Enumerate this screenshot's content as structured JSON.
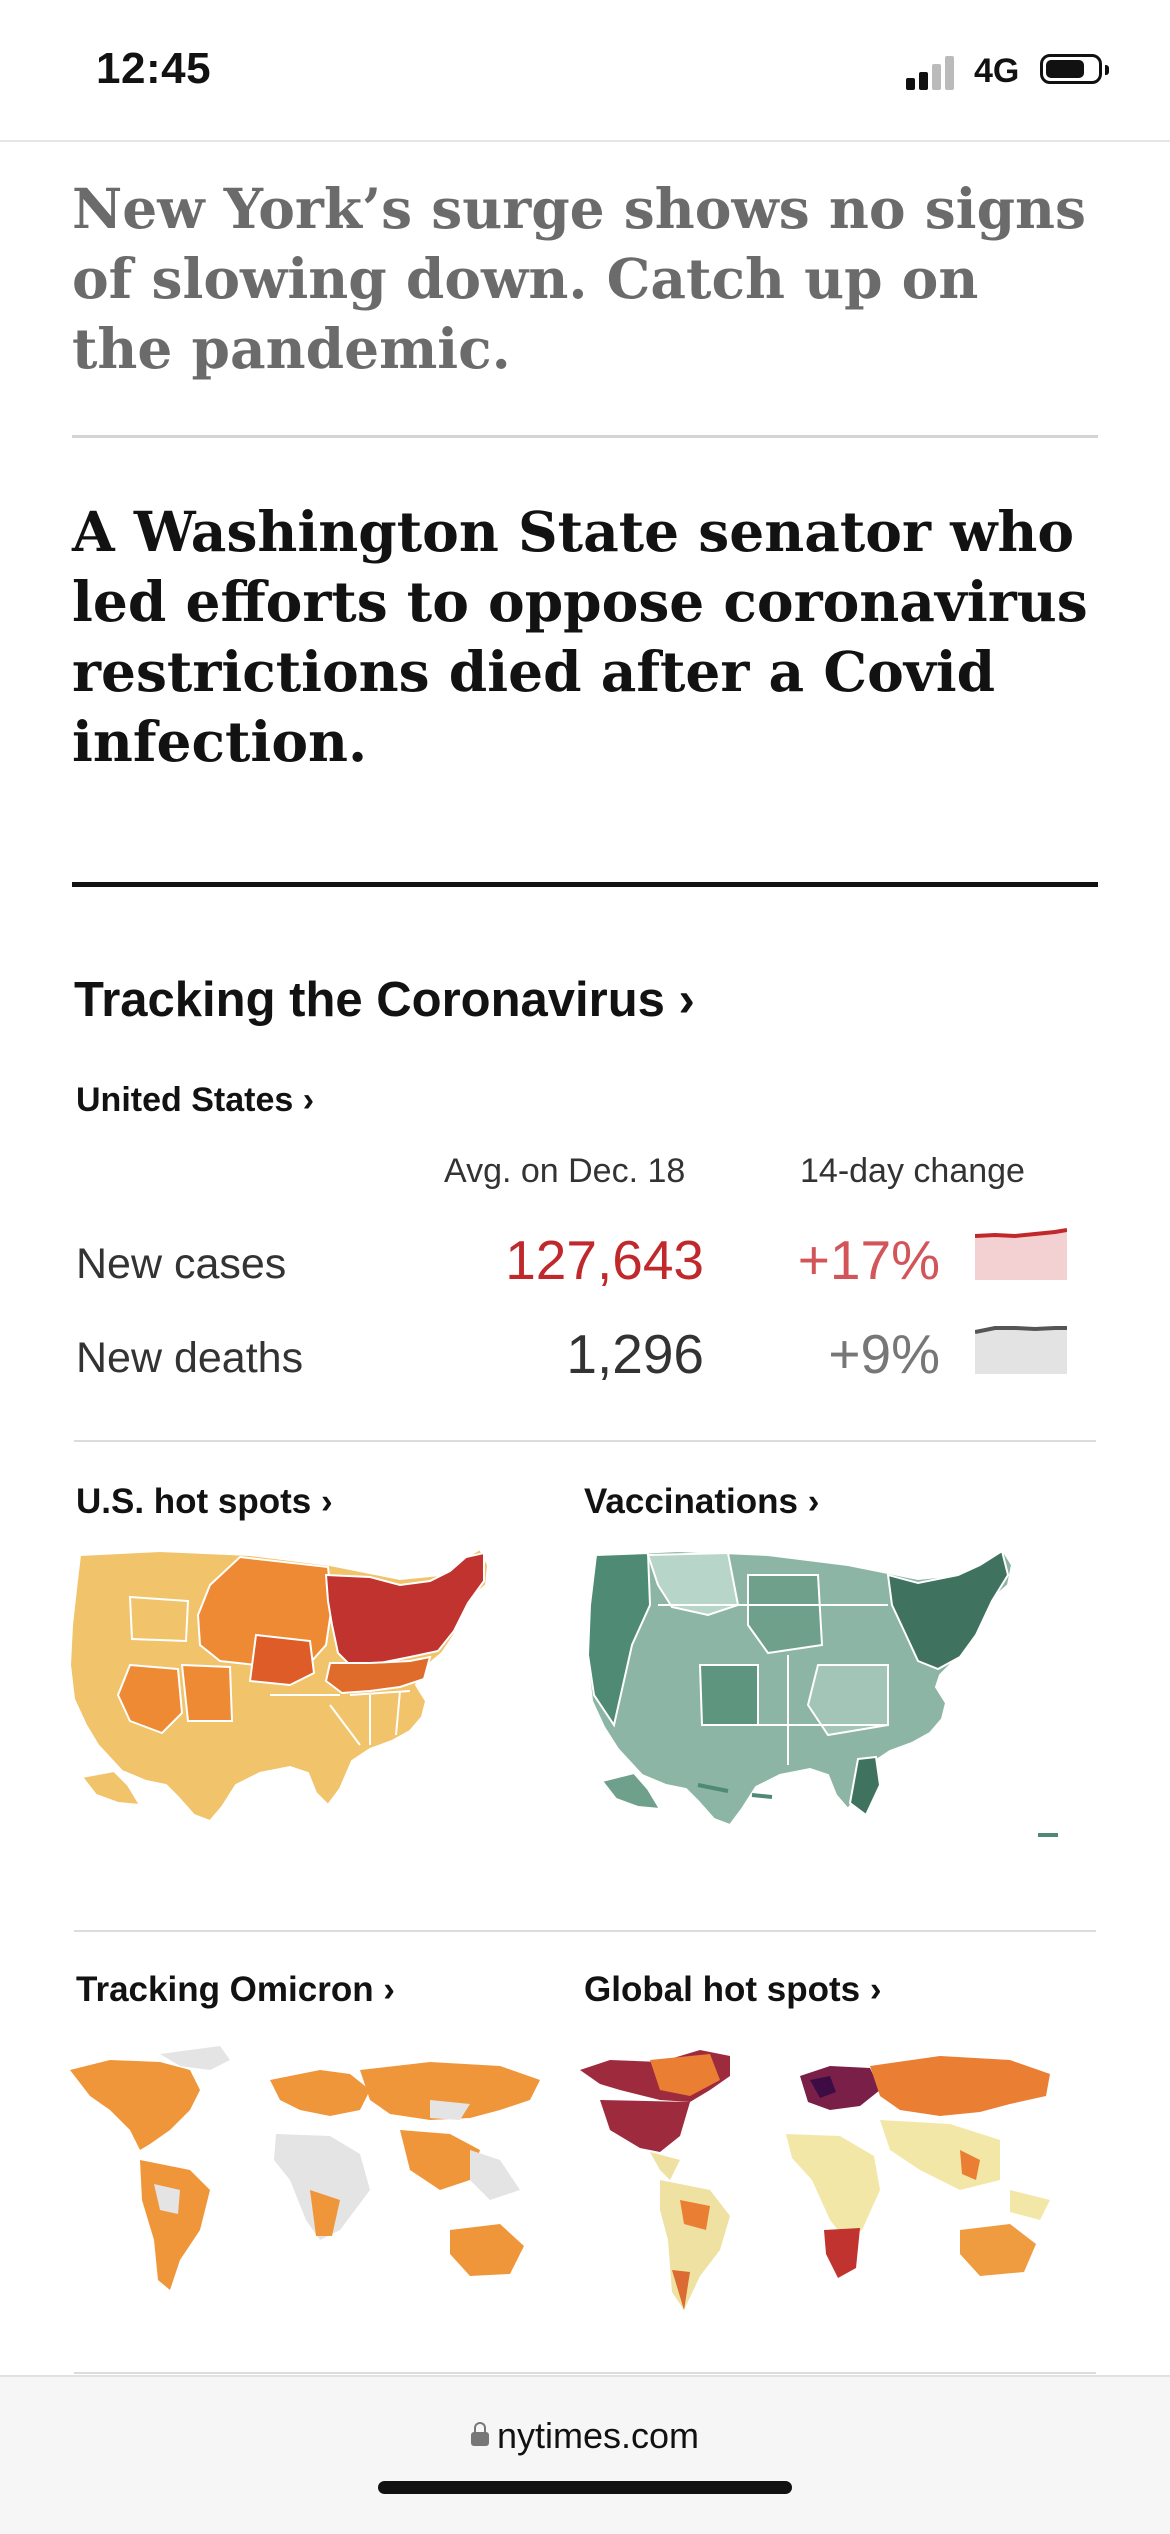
{
  "status_bar": {
    "time": "12:45",
    "network": "4G"
  },
  "article_1": {
    "headline": "New York’s surge shows no signs of slowing down. Catch up on the pandemic."
  },
  "article_2": {
    "headline": "A Washington State senator who led efforts to oppose coronavirus restrictions died after a Covid infection."
  },
  "tracker": {
    "title": "Tracking the Coronavirus ›",
    "region_link": "United States ›",
    "col_avg": "Avg. on Dec. 18",
    "col_change": "14-day change",
    "rows": [
      {
        "label": "New cases",
        "value": "127,643",
        "change": "+17%",
        "color": "#c0282b"
      },
      {
        "label": "New deaths",
        "value": "1,296",
        "change": "+9%",
        "color": "#333333"
      }
    ]
  },
  "cards": {
    "us_hot_spots": "U.S. hot spots ›",
    "vaccinations": "Vaccinations ›",
    "tracking_omicron": "Tracking Omicron ›",
    "global_hot_spots": "Global hot spots ›"
  },
  "browser": {
    "url": "nytimes.com"
  },
  "icons": {
    "lock": "lock-icon",
    "signal": "cellular-signal-icon",
    "battery": "battery-icon"
  },
  "colors": {
    "accent_red": "#c0282b",
    "hot_orange": "#ed8a32",
    "vacc_green": "#4f8a75",
    "omicron_orange": "#f0963a"
  }
}
